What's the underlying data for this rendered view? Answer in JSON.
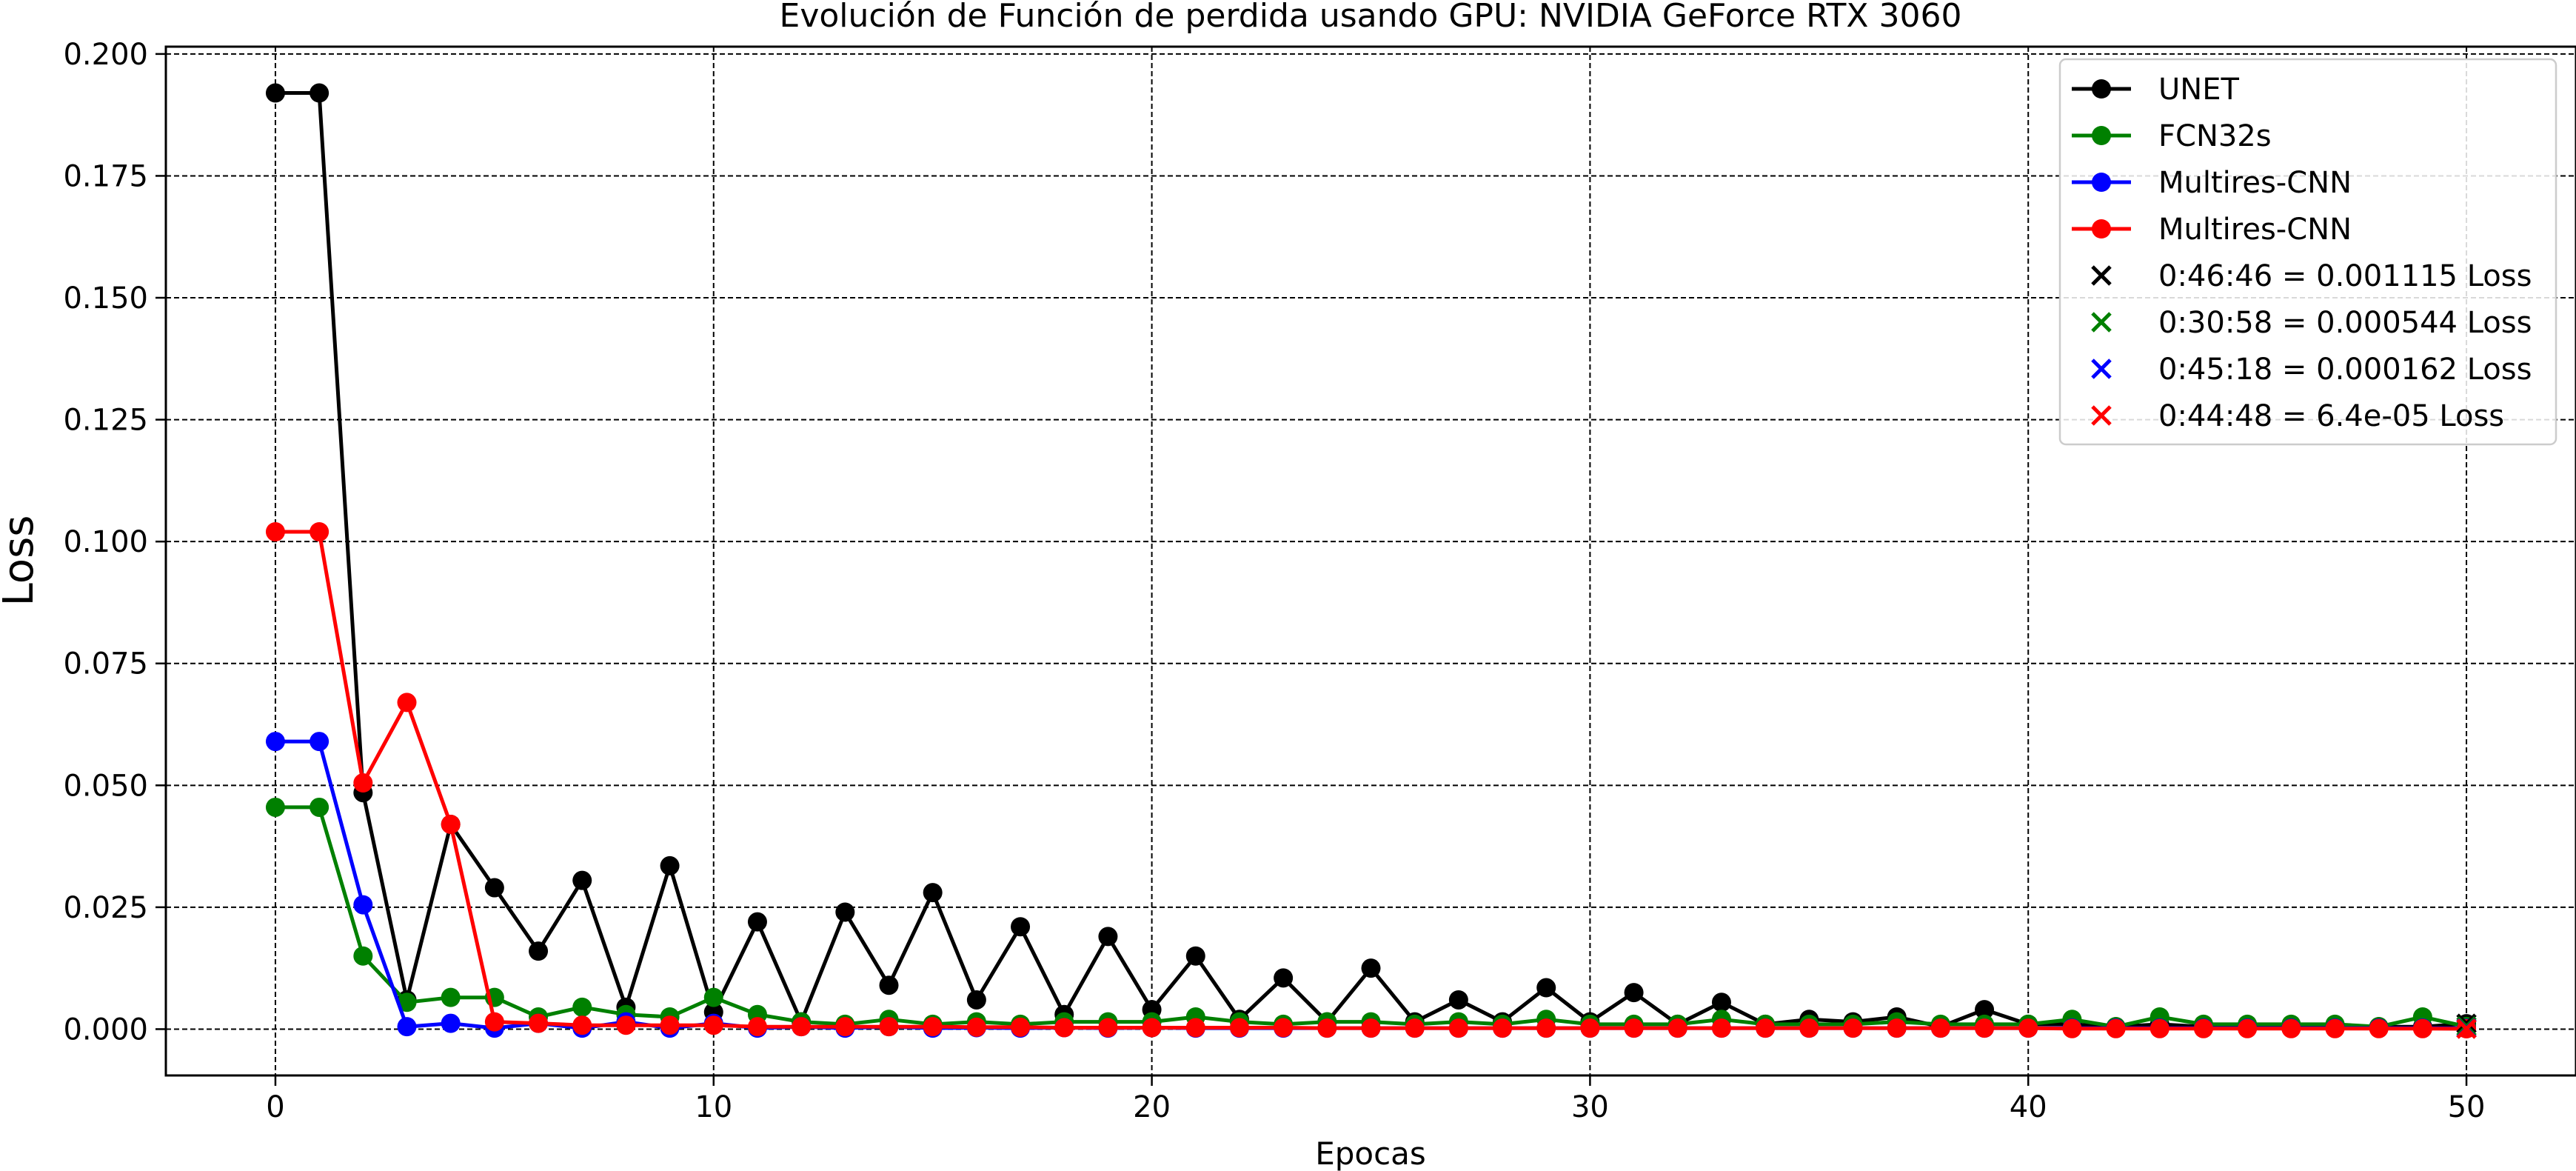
{
  "chart_data": {
    "type": "line",
    "title": "Evolución de Función de perdida usando GPU: NVIDIA GeForce RTX 3060",
    "xlabel": "Epocas",
    "ylabel": "Loss",
    "xlim": [
      -2.5,
      52.5
    ],
    "ylim": [
      -0.0095,
      0.2015
    ],
    "xticks": [
      0,
      10,
      20,
      30,
      40,
      50
    ],
    "yticks": [
      0.0,
      0.025,
      0.05,
      0.075,
      0.1,
      0.125,
      0.15,
      0.175,
      0.2
    ],
    "ytick_labels": [
      "0.000",
      "0.025",
      "0.050",
      "0.075",
      "0.100",
      "0.125",
      "0.150",
      "0.175",
      "0.200"
    ],
    "grid": true,
    "legend_position": "upper-right",
    "x": [
      0,
      1,
      2,
      3,
      4,
      5,
      6,
      7,
      8,
      9,
      10,
      11,
      12,
      13,
      14,
      15,
      16,
      17,
      18,
      19,
      20,
      21,
      22,
      23,
      24,
      25,
      26,
      27,
      28,
      29,
      30,
      31,
      32,
      33,
      34,
      35,
      36,
      37,
      38,
      39,
      40,
      41,
      42,
      43,
      44,
      45,
      46,
      47,
      48,
      49,
      50
    ],
    "series": [
      {
        "name": "UNET",
        "color": "#000000",
        "values": [
          0.192,
          0.192,
          0.0485,
          0.006,
          0.042,
          0.029,
          0.016,
          0.0305,
          0.0045,
          0.0335,
          0.0035,
          0.022,
          0.0015,
          0.024,
          0.009,
          0.028,
          0.006,
          0.021,
          0.003,
          0.019,
          0.004,
          0.015,
          0.002,
          0.0105,
          0.0015,
          0.0125,
          0.0015,
          0.006,
          0.0015,
          0.0085,
          0.0015,
          0.0075,
          0.001,
          0.0055,
          0.001,
          0.002,
          0.0015,
          0.0025,
          0.0005,
          0.004,
          0.001,
          0.001,
          0.0005,
          0.001,
          0.0005,
          0.0005,
          0.0005,
          0.0005,
          0.0005,
          0.0005,
          0.001115
        ]
      },
      {
        "name": "FCN32s",
        "color": "#008000",
        "values": [
          0.0455,
          0.0455,
          0.015,
          0.0055,
          0.0065,
          0.0065,
          0.0025,
          0.0045,
          0.003,
          0.0025,
          0.0065,
          0.003,
          0.0015,
          0.001,
          0.002,
          0.001,
          0.0015,
          0.001,
          0.0015,
          0.0015,
          0.0015,
          0.0025,
          0.0015,
          0.001,
          0.0015,
          0.0015,
          0.001,
          0.0015,
          0.001,
          0.002,
          0.001,
          0.001,
          0.001,
          0.002,
          0.001,
          0.001,
          0.001,
          0.0015,
          0.001,
          0.001,
          0.001,
          0.002,
          0.0005,
          0.0025,
          0.001,
          0.001,
          0.001,
          0.001,
          0.0005,
          0.0025,
          0.000544
        ]
      },
      {
        "name": "Multires-CNN",
        "color": "#0000ff",
        "values": [
          0.059,
          0.059,
          0.0255,
          0.0005,
          0.0012,
          0.0002,
          0.0012,
          0.0002,
          0.0015,
          0.0002,
          0.0012,
          0.0002,
          0.0005,
          0.0002,
          0.0005,
          0.0002,
          0.0003,
          0.0002,
          0.0003,
          0.0002,
          0.0003,
          0.0002,
          0.0002,
          0.0002,
          0.0002,
          0.0002,
          0.0002,
          0.0002,
          0.0002,
          0.0002,
          0.0002,
          0.0002,
          0.0002,
          0.0002,
          0.0002,
          0.0002,
          0.0002,
          0.0002,
          0.0002,
          0.0002,
          0.0002,
          0.0002,
          0.0002,
          0.0002,
          0.0002,
          0.0002,
          0.0002,
          0.0002,
          0.0002,
          0.0002,
          0.000162
        ]
      },
      {
        "name": "Multires-CNN",
        "color": "#ff0000",
        "values": [
          0.102,
          0.102,
          0.0505,
          0.067,
          0.042,
          0.0015,
          0.0012,
          0.0008,
          0.0008,
          0.0008,
          0.0008,
          0.0005,
          0.0005,
          0.0005,
          0.0005,
          0.0005,
          0.0004,
          0.0004,
          0.0003,
          0.0003,
          0.0003,
          0.0003,
          0.0003,
          0.0003,
          0.0002,
          0.0002,
          0.0002,
          0.0002,
          0.0002,
          0.0002,
          0.0002,
          0.0002,
          0.0002,
          0.0002,
          0.0002,
          0.0002,
          0.0002,
          0.0002,
          0.0002,
          0.0002,
          0.0002,
          0.0001,
          0.0001,
          0.0001,
          0.0001,
          0.0001,
          0.0001,
          0.0001,
          0.0001,
          0.0001,
          6.4e-05
        ]
      }
    ],
    "final_markers": [
      {
        "label": "0:46:46 = 0.001115 Loss",
        "color": "#000000",
        "x": 50,
        "y": 0.001115
      },
      {
        "label": "0:30:58 = 0.000544 Loss",
        "color": "#008000",
        "x": 50,
        "y": 0.000544
      },
      {
        "label": "0:45:18 = 0.000162 Loss",
        "color": "#0000ff",
        "x": 50,
        "y": 0.000162
      },
      {
        "label": "0:44:48 = 6.4e-05 Loss",
        "color": "#ff0000",
        "x": 50,
        "y": 6.4e-05
      }
    ]
  }
}
